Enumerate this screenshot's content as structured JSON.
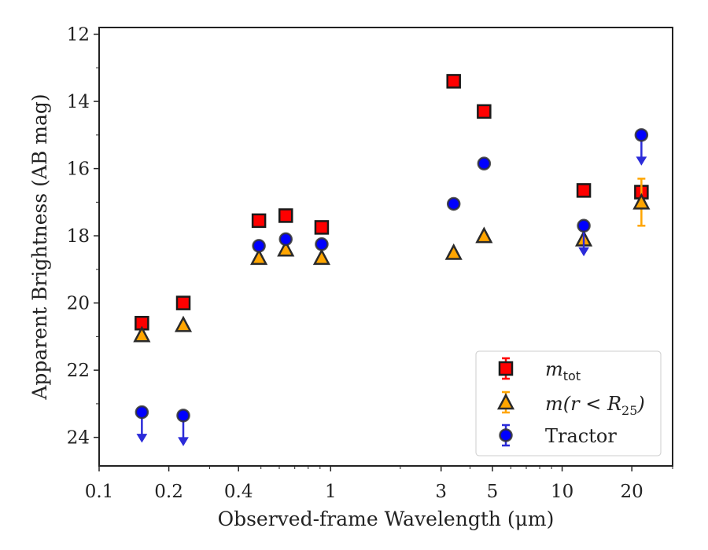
{
  "chart_data": {
    "type": "scatter",
    "xlabel": "Observed-frame Wavelength (μm)",
    "ylabel": "Apparent Brightness (AB mag)",
    "xscale": "log",
    "xlim": [
      0.1,
      30
    ],
    "ylim": [
      24.85,
      11.8
    ],
    "y_inverted": true,
    "x_ticks": [
      0.1,
      0.2,
      0.4,
      1,
      3,
      5,
      10,
      20
    ],
    "x_tick_labels": [
      "0.1",
      "0.2",
      "0.4",
      "1",
      "3",
      "5",
      "10",
      "20"
    ],
    "y_ticks": [
      12,
      14,
      16,
      18,
      20,
      22,
      24
    ],
    "y_tick_labels": [
      "12",
      "14",
      "16",
      "18",
      "20",
      "22",
      "24"
    ],
    "legend_position": "lower-right",
    "series": [
      {
        "name": "m_tot",
        "legend_main": "m",
        "legend_sub": "tot",
        "marker": "square",
        "color": "#ff0000",
        "edge_color": "#1a1a1a",
        "points": [
          {
            "x": 0.153,
            "y": 20.6
          },
          {
            "x": 0.231,
            "y": 20.0
          },
          {
            "x": 0.49,
            "y": 17.55
          },
          {
            "x": 0.64,
            "y": 17.4
          },
          {
            "x": 0.915,
            "y": 17.75
          },
          {
            "x": 3.4,
            "y": 13.4
          },
          {
            "x": 4.6,
            "y": 14.3
          },
          {
            "x": 12.4,
            "y": 16.65
          },
          {
            "x": 22.0,
            "y": 16.7,
            "yerr": 0.15
          }
        ]
      },
      {
        "name": "m(r < R_25)",
        "legend_main": "m(r < R",
        "legend_sub": "25",
        "legend_tail": ")",
        "marker": "triangle",
        "color": "#ffa500",
        "edge_color": "#2a2a2a",
        "points": [
          {
            "x": 0.153,
            "y": 20.95
          },
          {
            "x": 0.231,
            "y": 20.65
          },
          {
            "x": 0.49,
            "y": 18.65
          },
          {
            "x": 0.64,
            "y": 18.4
          },
          {
            "x": 0.915,
            "y": 18.65
          },
          {
            "x": 3.4,
            "y": 18.5
          },
          {
            "x": 4.6,
            "y": 18.0
          },
          {
            "x": 12.4,
            "y": 18.1
          },
          {
            "x": 22.0,
            "y": 17.0,
            "yerr": 0.7
          }
        ]
      },
      {
        "name": "Tractor",
        "marker": "circle",
        "color": "#0000ff",
        "edge_color": "#333333",
        "points": [
          {
            "x": 0.153,
            "y": 23.25,
            "upper_limit": true
          },
          {
            "x": 0.231,
            "y": 23.35,
            "upper_limit": true
          },
          {
            "x": 0.49,
            "y": 18.3
          },
          {
            "x": 0.64,
            "y": 18.1
          },
          {
            "x": 0.915,
            "y": 18.25
          },
          {
            "x": 3.4,
            "y": 17.05
          },
          {
            "x": 4.6,
            "y": 15.85
          },
          {
            "x": 12.4,
            "y": 17.7,
            "upper_limit": true
          },
          {
            "x": 22.0,
            "y": 15.0,
            "upper_limit": true
          }
        ]
      }
    ]
  }
}
